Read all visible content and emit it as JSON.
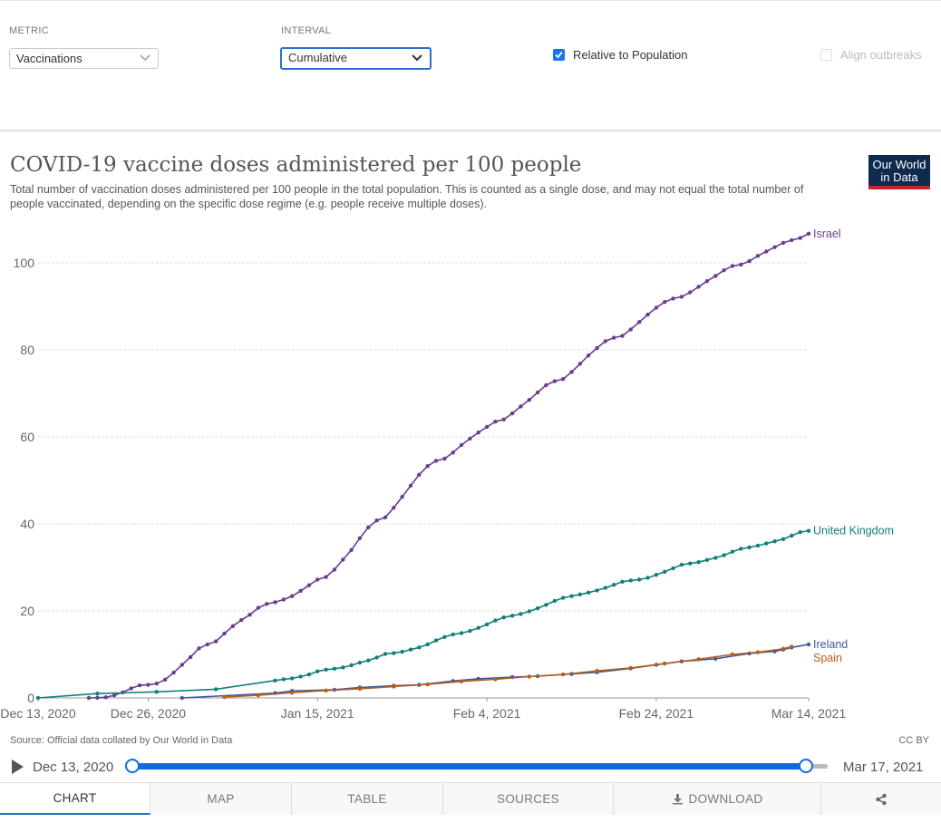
{
  "controls": {
    "metric_label": "METRIC",
    "metric_value": "Vaccinations",
    "interval_label": "INTERVAL",
    "interval_value": "Cumulative",
    "relative_label": "Relative to Population",
    "relative_checked": true,
    "align_label": "Align outbreaks",
    "align_checked": false
  },
  "header": {
    "title": "COVID-19 vaccine doses administered per 100 people",
    "subtitle": "Total number of vaccination doses administered per 100 people in the total population. This is counted as a single dose, and may not equal the total number of people vaccinated, depending on the specific dose regime (e.g. people receive multiple doses).",
    "logo_line1": "Our World",
    "logo_line2": "in Data"
  },
  "footer": {
    "source": "Source: Official data collated by Our World in Data",
    "license": "CC BY"
  },
  "timeline": {
    "start_label": "Dec 13, 2020",
    "end_label": "Mar 17, 2021",
    "start_day": 0,
    "selected_end_day": 91,
    "max_day": 94
  },
  "tabs": [
    "CHART",
    "MAP",
    "TABLE",
    "SOURCES",
    "DOWNLOAD",
    ""
  ],
  "chart_data": {
    "type": "line",
    "title": "COVID-19 vaccine doses administered per 100 people",
    "x_axis": {
      "type": "date",
      "min": "2020-12-13",
      "max": "2021-03-14",
      "ticks": [
        {
          "date": "2020-12-13",
          "label": "Dec 13, 2020"
        },
        {
          "date": "2020-12-26",
          "label": "Dec 26, 2020"
        },
        {
          "date": "2021-01-15",
          "label": "Jan 15, 2021"
        },
        {
          "date": "2021-02-04",
          "label": "Feb 4, 2021"
        },
        {
          "date": "2021-02-24",
          "label": "Feb 24, 2021"
        },
        {
          "date": "2021-03-14",
          "label": "Mar 14, 2021"
        }
      ]
    },
    "y_axis": {
      "min": 0,
      "max": 100,
      "ticks": [
        {
          "value": 0,
          "label": "0"
        },
        {
          "value": 20,
          "label": "20"
        },
        {
          "value": 40,
          "label": "40"
        },
        {
          "value": 60,
          "label": "60"
        },
        {
          "value": 80,
          "label": "80"
        },
        {
          "value": 100,
          "label": "100"
        }
      ]
    },
    "grid": true,
    "legend": "end-of-line labels",
    "series": [
      {
        "name": "Israel",
        "color": "#6b3d8e",
        "points": [
          [
            "2020-12-19",
            0.0
          ],
          [
            "2020-12-20",
            0.05
          ],
          [
            "2020-12-21",
            0.15
          ],
          [
            "2020-12-22",
            0.6
          ],
          [
            "2020-12-23",
            1.3
          ],
          [
            "2020-12-24",
            2.2
          ],
          [
            "2020-12-25",
            2.9
          ],
          [
            "2020-12-26",
            3.0
          ],
          [
            "2020-12-27",
            3.3
          ],
          [
            "2020-12-28",
            4.2
          ],
          [
            "2020-12-29",
            5.8
          ],
          [
            "2020-12-30",
            7.6
          ],
          [
            "2020-12-31",
            9.4
          ],
          [
            "2021-01-01",
            11.4
          ],
          [
            "2021-01-02",
            12.3
          ],
          [
            "2021-01-03",
            13.0
          ],
          [
            "2021-01-04",
            14.8
          ],
          [
            "2021-01-05",
            16.5
          ],
          [
            "2021-01-06",
            17.9
          ],
          [
            "2021-01-07",
            19.1
          ],
          [
            "2021-01-08",
            20.7
          ],
          [
            "2021-01-09",
            21.6
          ],
          [
            "2021-01-10",
            22.0
          ],
          [
            "2021-01-11",
            22.6
          ],
          [
            "2021-01-12",
            23.4
          ],
          [
            "2021-01-13",
            24.6
          ],
          [
            "2021-01-14",
            25.9
          ],
          [
            "2021-01-15",
            27.2
          ],
          [
            "2021-01-16",
            27.8
          ],
          [
            "2021-01-17",
            29.5
          ],
          [
            "2021-01-18",
            31.8
          ],
          [
            "2021-01-19",
            34.0
          ],
          [
            "2021-01-20",
            36.7
          ],
          [
            "2021-01-21",
            39.2
          ],
          [
            "2021-01-22",
            40.8
          ],
          [
            "2021-01-23",
            41.5
          ],
          [
            "2021-01-24",
            43.7
          ],
          [
            "2021-01-25",
            46.2
          ],
          [
            "2021-01-26",
            48.8
          ],
          [
            "2021-01-27",
            51.3
          ],
          [
            "2021-01-28",
            53.3
          ],
          [
            "2021-01-29",
            54.5
          ],
          [
            "2021-01-30",
            55.0
          ],
          [
            "2021-01-31",
            56.4
          ],
          [
            "2021-02-01",
            58.1
          ],
          [
            "2021-02-02",
            59.6
          ],
          [
            "2021-02-03",
            61.0
          ],
          [
            "2021-02-04",
            62.3
          ],
          [
            "2021-02-05",
            63.5
          ],
          [
            "2021-02-06",
            64.0
          ],
          [
            "2021-02-07",
            65.4
          ],
          [
            "2021-02-08",
            67.0
          ],
          [
            "2021-02-09",
            68.5
          ],
          [
            "2021-02-10",
            70.2
          ],
          [
            "2021-02-11",
            71.9
          ],
          [
            "2021-02-12",
            72.8
          ],
          [
            "2021-02-13",
            73.3
          ],
          [
            "2021-02-14",
            74.9
          ],
          [
            "2021-02-15",
            76.8
          ],
          [
            "2021-02-16",
            78.7
          ],
          [
            "2021-02-17",
            80.4
          ],
          [
            "2021-02-18",
            82.0
          ],
          [
            "2021-02-19",
            82.8
          ],
          [
            "2021-02-20",
            83.2
          ],
          [
            "2021-02-21",
            84.7
          ],
          [
            "2021-02-22",
            86.4
          ],
          [
            "2021-02-23",
            88.1
          ],
          [
            "2021-02-24",
            89.7
          ],
          [
            "2021-02-25",
            91.0
          ],
          [
            "2021-02-26",
            91.8
          ],
          [
            "2021-02-27",
            92.2
          ],
          [
            "2021-02-28",
            93.2
          ],
          [
            "2021-03-01",
            94.5
          ],
          [
            "2021-03-02",
            95.8
          ],
          [
            "2021-03-03",
            97.0
          ],
          [
            "2021-03-04",
            98.3
          ],
          [
            "2021-03-05",
            99.3
          ],
          [
            "2021-03-06",
            99.6
          ],
          [
            "2021-03-07",
            100.4
          ],
          [
            "2021-03-08",
            101.6
          ],
          [
            "2021-03-09",
            102.6
          ],
          [
            "2021-03-10",
            103.6
          ],
          [
            "2021-03-11",
            104.6
          ],
          [
            "2021-03-12",
            105.2
          ],
          [
            "2021-03-13",
            105.7
          ],
          [
            "2021-03-14",
            106.7
          ]
        ]
      },
      {
        "name": "United Kingdom",
        "color": "#11807b",
        "points": [
          [
            "2020-12-13",
            0.0
          ],
          [
            "2020-12-20",
            1.0
          ],
          [
            "2020-12-27",
            1.4
          ],
          [
            "2021-01-03",
            2.0
          ],
          [
            "2021-01-10",
            4.0
          ],
          [
            "2021-01-11",
            4.3
          ],
          [
            "2021-01-12",
            4.5
          ],
          [
            "2021-01-13",
            4.9
          ],
          [
            "2021-01-14",
            5.4
          ],
          [
            "2021-01-15",
            6.1
          ],
          [
            "2021-01-16",
            6.5
          ],
          [
            "2021-01-17",
            6.7
          ],
          [
            "2021-01-18",
            7.0
          ],
          [
            "2021-01-19",
            7.5
          ],
          [
            "2021-01-20",
            8.1
          ],
          [
            "2021-01-21",
            8.6
          ],
          [
            "2021-01-22",
            9.3
          ],
          [
            "2021-01-23",
            10.1
          ],
          [
            "2021-01-24",
            10.3
          ],
          [
            "2021-01-25",
            10.6
          ],
          [
            "2021-01-26",
            11.1
          ],
          [
            "2021-01-27",
            11.6
          ],
          [
            "2021-01-28",
            12.3
          ],
          [
            "2021-01-29",
            13.2
          ],
          [
            "2021-01-30",
            14.0
          ],
          [
            "2021-01-31",
            14.6
          ],
          [
            "2021-02-01",
            14.9
          ],
          [
            "2021-02-02",
            15.4
          ],
          [
            "2021-02-03",
            16.1
          ],
          [
            "2021-02-04",
            16.9
          ],
          [
            "2021-02-05",
            17.8
          ],
          [
            "2021-02-06",
            18.5
          ],
          [
            "2021-02-07",
            18.9
          ],
          [
            "2021-02-08",
            19.3
          ],
          [
            "2021-02-09",
            19.9
          ],
          [
            "2021-02-10",
            20.6
          ],
          [
            "2021-02-11",
            21.4
          ],
          [
            "2021-02-12",
            22.3
          ],
          [
            "2021-02-13",
            23.0
          ],
          [
            "2021-02-14",
            23.4
          ],
          [
            "2021-02-15",
            23.8
          ],
          [
            "2021-02-16",
            24.2
          ],
          [
            "2021-02-17",
            24.7
          ],
          [
            "2021-02-18",
            25.3
          ],
          [
            "2021-02-19",
            26.0
          ],
          [
            "2021-02-20",
            26.7
          ],
          [
            "2021-02-21",
            27.0
          ],
          [
            "2021-02-22",
            27.2
          ],
          [
            "2021-02-23",
            27.6
          ],
          [
            "2021-02-24",
            28.3
          ],
          [
            "2021-02-25",
            29.0
          ],
          [
            "2021-02-26",
            29.8
          ],
          [
            "2021-02-27",
            30.6
          ],
          [
            "2021-02-28",
            30.9
          ],
          [
            "2021-03-01",
            31.2
          ],
          [
            "2021-03-02",
            31.7
          ],
          [
            "2021-03-03",
            32.2
          ],
          [
            "2021-03-04",
            32.8
          ],
          [
            "2021-03-05",
            33.6
          ],
          [
            "2021-03-06",
            34.3
          ],
          [
            "2021-03-07",
            34.6
          ],
          [
            "2021-03-08",
            35.0
          ],
          [
            "2021-03-09",
            35.5
          ],
          [
            "2021-03-10",
            36.0
          ],
          [
            "2021-03-11",
            36.5
          ],
          [
            "2021-03-12",
            37.3
          ],
          [
            "2021-03-13",
            38.1
          ],
          [
            "2021-03-14",
            38.4
          ]
        ]
      },
      {
        "name": "Ireland",
        "color": "#3d5b98",
        "points": [
          [
            "2020-12-30",
            0.0
          ],
          [
            "2021-01-10",
            1.1
          ],
          [
            "2021-01-12",
            1.6
          ],
          [
            "2021-01-17",
            1.9
          ],
          [
            "2021-01-20",
            2.4
          ],
          [
            "2021-01-24",
            2.8
          ],
          [
            "2021-01-27",
            3.0
          ],
          [
            "2021-01-31",
            3.9
          ],
          [
            "2021-02-03",
            4.4
          ],
          [
            "2021-02-07",
            4.8
          ],
          [
            "2021-02-10",
            5.0
          ],
          [
            "2021-02-14",
            5.5
          ],
          [
            "2021-02-17",
            5.9
          ],
          [
            "2021-02-21",
            6.8
          ],
          [
            "2021-02-24",
            7.6
          ],
          [
            "2021-02-27",
            8.4
          ],
          [
            "2021-03-03",
            9.0
          ],
          [
            "2021-03-07",
            10.2
          ],
          [
            "2021-03-10",
            10.7
          ],
          [
            "2021-03-11",
            11.1
          ],
          [
            "2021-03-12",
            11.6
          ],
          [
            "2021-03-14",
            12.3
          ]
        ]
      },
      {
        "name": "Spain",
        "color": "#b55e1f",
        "points": [
          [
            "2021-01-04",
            0.2
          ],
          [
            "2021-01-08",
            0.6
          ],
          [
            "2021-01-12",
            1.2
          ],
          [
            "2021-01-16",
            1.7
          ],
          [
            "2021-01-20",
            2.1
          ],
          [
            "2021-01-24",
            2.6
          ],
          [
            "2021-01-28",
            3.1
          ],
          [
            "2021-02-01",
            3.8
          ],
          [
            "2021-02-05",
            4.3
          ],
          [
            "2021-02-09",
            4.9
          ],
          [
            "2021-02-13",
            5.4
          ],
          [
            "2021-02-17",
            6.2
          ],
          [
            "2021-02-21",
            6.9
          ],
          [
            "2021-02-25",
            7.9
          ],
          [
            "2021-03-01",
            8.9
          ],
          [
            "2021-03-05",
            10.0
          ],
          [
            "2021-03-08",
            10.5
          ],
          [
            "2021-03-11",
            11.3
          ],
          [
            "2021-03-12",
            11.8
          ]
        ]
      }
    ]
  }
}
